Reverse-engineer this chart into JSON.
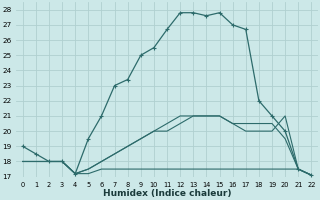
{
  "xlabel": "Humidex (Indice chaleur)",
  "bg_color": "#cce8e8",
  "line_color": "#2d6b6b",
  "grid_color": "#b0d0d0",
  "xlim": [
    -0.5,
    22.5
  ],
  "ylim": [
    17,
    28.5
  ],
  "xticks": [
    0,
    1,
    2,
    3,
    4,
    5,
    6,
    7,
    8,
    9,
    10,
    11,
    12,
    13,
    14,
    15,
    16,
    17,
    18,
    19,
    20,
    21,
    22
  ],
  "yticks": [
    17,
    18,
    19,
    20,
    21,
    22,
    23,
    24,
    25,
    26,
    27,
    28
  ],
  "series": [
    {
      "x": [
        0,
        1,
        2,
        3,
        4,
        5,
        6,
        7,
        8,
        9,
        10,
        11,
        12,
        13,
        14,
        15,
        16,
        17,
        18,
        19,
        20,
        21,
        22
      ],
      "y": [
        19,
        18.5,
        18,
        18,
        17.2,
        19.5,
        21,
        23,
        23.4,
        25,
        25.5,
        26.7,
        27.8,
        27.8,
        27.6,
        27.8,
        27.0,
        26.7,
        22,
        21,
        20.0,
        17.5,
        17.1
      ],
      "marker": "+"
    },
    {
      "x": [
        0,
        2,
        3,
        4,
        5,
        6,
        7,
        8,
        9,
        10,
        11,
        12,
        13,
        14,
        15,
        16,
        17,
        18,
        19,
        20,
        21,
        22
      ],
      "y": [
        18,
        18,
        18,
        17.2,
        17.2,
        17.5,
        17.5,
        17.5,
        17.5,
        17.5,
        17.5,
        17.5,
        17.5,
        17.5,
        17.5,
        17.5,
        17.5,
        17.5,
        17.5,
        17.5,
        17.5,
        17.1
      ],
      "marker": null
    },
    {
      "x": [
        0,
        2,
        3,
        4,
        5,
        6,
        7,
        8,
        9,
        10,
        11,
        12,
        13,
        14,
        15,
        16,
        17,
        18,
        19,
        20,
        21,
        22
      ],
      "y": [
        18,
        18,
        18,
        17.2,
        17.5,
        18,
        18.5,
        19,
        19.5,
        20,
        20.5,
        21,
        21,
        21,
        21,
        20.5,
        20.5,
        20.5,
        20.5,
        19.5,
        17.5,
        17.1
      ],
      "marker": null
    },
    {
      "x": [
        0,
        2,
        3,
        4,
        5,
        6,
        7,
        8,
        9,
        10,
        11,
        12,
        13,
        14,
        15,
        16,
        17,
        18,
        19,
        20,
        21,
        22
      ],
      "y": [
        18,
        18,
        18,
        17.2,
        17.5,
        18,
        18.5,
        19,
        19.5,
        20,
        20,
        20.5,
        21,
        21,
        21,
        20.5,
        20,
        20,
        20,
        21.0,
        17.5,
        17.1
      ],
      "marker": null
    }
  ]
}
